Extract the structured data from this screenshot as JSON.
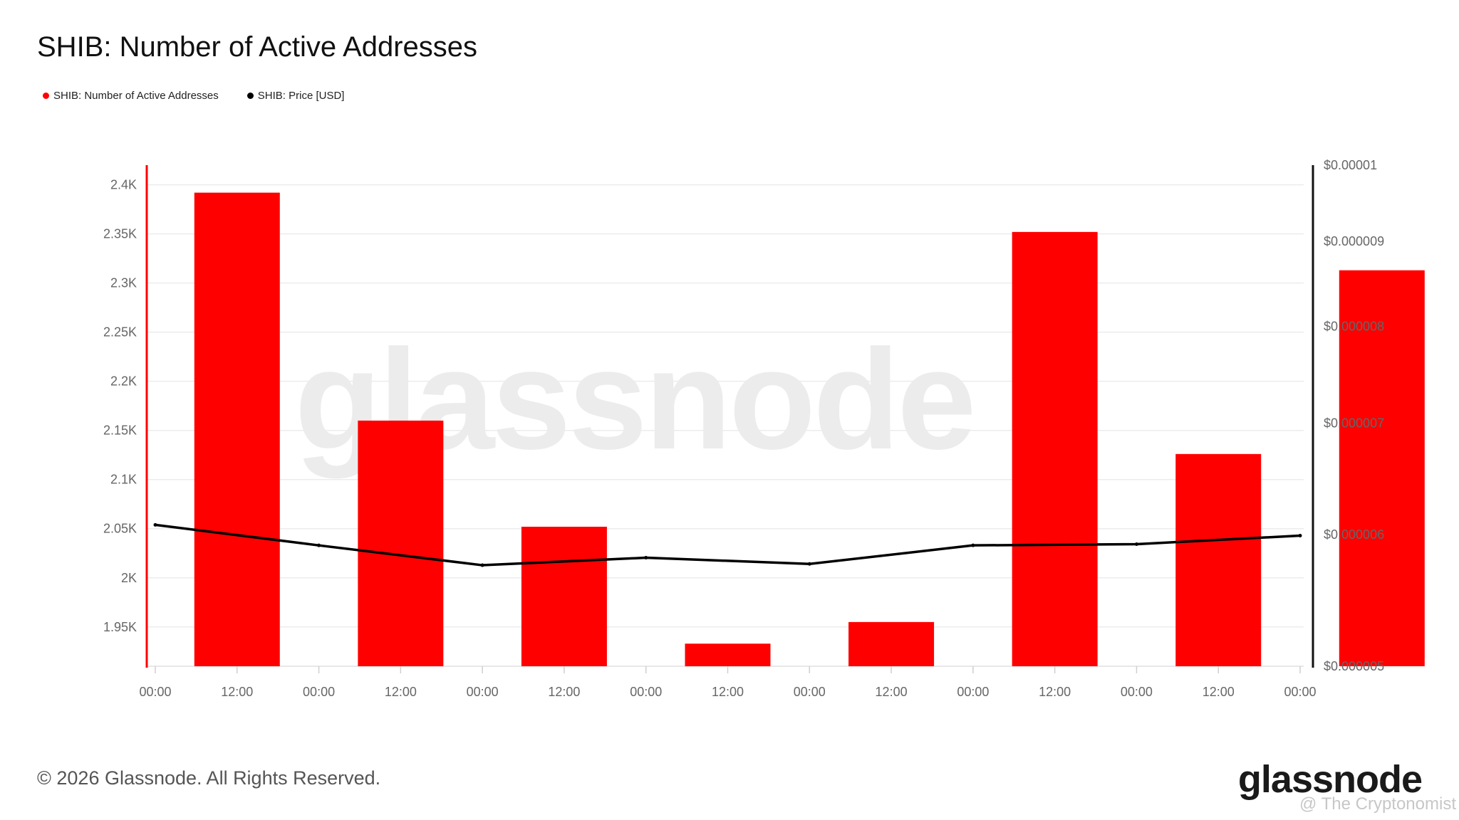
{
  "title": "SHIB: Number of Active Addresses",
  "legend": [
    {
      "label": "SHIB: Number of Active Addresses",
      "color": "#ff0000"
    },
    {
      "label": "SHIB: Price [USD]",
      "color": "#000000"
    }
  ],
  "footer": "© 2026 Glassnode. All Rights Reserved.",
  "brand": "glassnode",
  "credit": "@ The Cryptonomist",
  "watermark": "glassnode",
  "chart_data": {
    "type": "bar",
    "x_ticks": [
      "00:00",
      "12:00",
      "00:00",
      "12:00",
      "00:00",
      "12:00",
      "00:00",
      "12:00",
      "00:00",
      "12:00",
      "00:00",
      "12:00",
      "00:00",
      "12:00",
      "00:00"
    ],
    "y_left": {
      "ticks": [
        1950,
        2000,
        2050,
        2100,
        2150,
        2200,
        2250,
        2300,
        2350,
        2400
      ],
      "tick_labels": [
        "1.95K",
        "2K",
        "2.05K",
        "2.1K",
        "2.15K",
        "2.2K",
        "2.25K",
        "2.3K",
        "2.35K",
        "2.4K"
      ],
      "ylim": [
        1910,
        2420
      ]
    },
    "y_right": {
      "scale": "log",
      "ticks": [
        5e-06,
        6e-06,
        7e-06,
        8e-06,
        9e-06,
        1e-05
      ],
      "tick_labels": [
        "$0.000005",
        "$0.000006",
        "$0.000007",
        "$0.000008",
        "$0.000009",
        "$0.00001"
      ],
      "ylim": [
        5e-06,
        1e-05
      ]
    },
    "series": [
      {
        "name": "SHIB: Number of Active Addresses",
        "type": "bar",
        "axis": "left",
        "color": "#ff0000",
        "x_index": [
          0,
          2,
          4,
          6,
          8,
          10,
          12,
          14
        ],
        "values": [
          2392,
          2160,
          2052,
          1933,
          1955,
          2352,
          2126,
          2313
        ]
      },
      {
        "name": "SHIB: Price [USD]",
        "type": "line",
        "axis": "right",
        "color": "#000000",
        "x_index": [
          0,
          2,
          4,
          6,
          8,
          10,
          12,
          14
        ],
        "values": [
          6.08e-06,
          5.91e-06,
          5.75e-06,
          5.81e-06,
          5.76e-06,
          5.91e-06,
          5.92e-06,
          5.99e-06
        ]
      }
    ]
  }
}
